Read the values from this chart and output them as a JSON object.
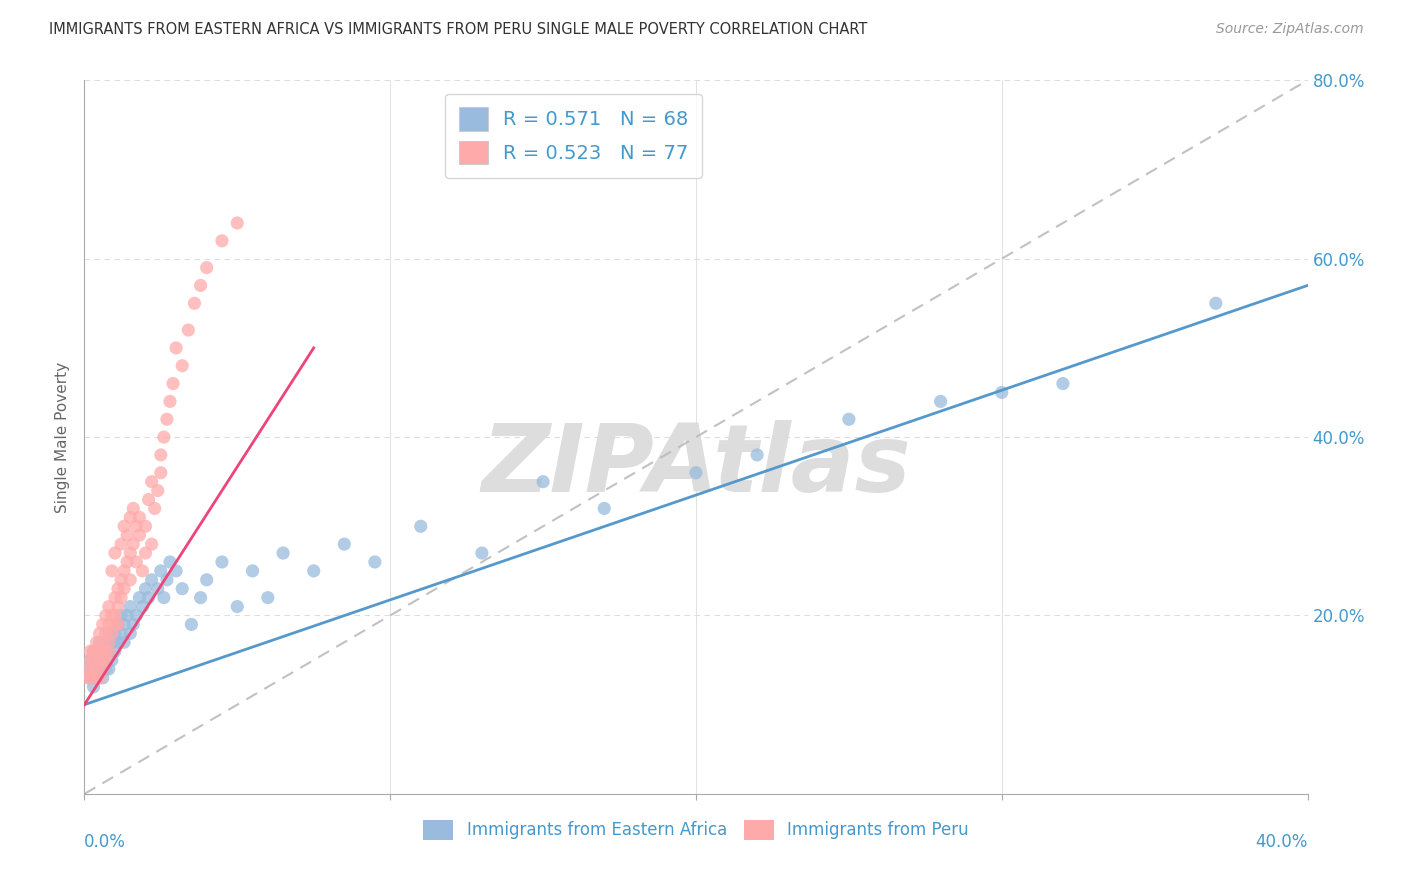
{
  "title": "IMMIGRANTS FROM EASTERN AFRICA VS IMMIGRANTS FROM PERU SINGLE MALE POVERTY CORRELATION CHART",
  "source": "Source: ZipAtlas.com",
  "ylabel": "Single Male Poverty",
  "legend_label1": "Immigrants from Eastern Africa",
  "legend_label2": "Immigrants from Peru",
  "R1": 0.571,
  "N1": 68,
  "R2": 0.523,
  "N2": 77,
  "xlim": [
    0.0,
    0.4
  ],
  "ylim": [
    0.0,
    0.8
  ],
  "color_blue": "#99BBDD",
  "color_pink": "#FFAAAA",
  "color_blue_line": "#5599CC",
  "color_pink_line": "#EE4477",
  "color_diag": "#BBBBBB",
  "color_axis_label": "#4499CC",
  "watermark": "ZIPAtlas",
  "watermark_color": "#DDDDDD",
  "blue_x": [
    0.001,
    0.002,
    0.002,
    0.003,
    0.003,
    0.003,
    0.004,
    0.004,
    0.005,
    0.005,
    0.005,
    0.006,
    0.006,
    0.006,
    0.007,
    0.007,
    0.008,
    0.008,
    0.008,
    0.009,
    0.009,
    0.01,
    0.01,
    0.011,
    0.011,
    0.012,
    0.012,
    0.013,
    0.013,
    0.014,
    0.015,
    0.015,
    0.016,
    0.017,
    0.018,
    0.019,
    0.02,
    0.021,
    0.022,
    0.024,
    0.025,
    0.026,
    0.027,
    0.028,
    0.03,
    0.032,
    0.035,
    0.038,
    0.04,
    0.045,
    0.05,
    0.055,
    0.06,
    0.065,
    0.075,
    0.085,
    0.095,
    0.11,
    0.13,
    0.15,
    0.17,
    0.2,
    0.22,
    0.25,
    0.28,
    0.3,
    0.32,
    0.37
  ],
  "blue_y": [
    0.14,
    0.13,
    0.15,
    0.14,
    0.16,
    0.12,
    0.15,
    0.13,
    0.16,
    0.14,
    0.17,
    0.15,
    0.16,
    0.13,
    0.17,
    0.14,
    0.16,
    0.18,
    0.14,
    0.17,
    0.15,
    0.18,
    0.16,
    0.19,
    0.17,
    0.18,
    0.2,
    0.19,
    0.17,
    0.2,
    0.18,
    0.21,
    0.19,
    0.2,
    0.22,
    0.21,
    0.23,
    0.22,
    0.24,
    0.23,
    0.25,
    0.22,
    0.24,
    0.26,
    0.25,
    0.23,
    0.19,
    0.22,
    0.24,
    0.26,
    0.21,
    0.25,
    0.22,
    0.27,
    0.25,
    0.28,
    0.26,
    0.3,
    0.27,
    0.35,
    0.32,
    0.36,
    0.38,
    0.42,
    0.44,
    0.45,
    0.46,
    0.55
  ],
  "pink_x": [
    0.001,
    0.001,
    0.002,
    0.002,
    0.002,
    0.003,
    0.003,
    0.003,
    0.003,
    0.004,
    0.004,
    0.004,
    0.005,
    0.005,
    0.005,
    0.005,
    0.006,
    0.006,
    0.006,
    0.006,
    0.007,
    0.007,
    0.007,
    0.007,
    0.008,
    0.008,
    0.008,
    0.008,
    0.009,
    0.009,
    0.009,
    0.01,
    0.01,
    0.01,
    0.01,
    0.011,
    0.011,
    0.011,
    0.012,
    0.012,
    0.012,
    0.013,
    0.013,
    0.013,
    0.014,
    0.014,
    0.015,
    0.015,
    0.015,
    0.016,
    0.016,
    0.017,
    0.017,
    0.018,
    0.018,
    0.019,
    0.02,
    0.02,
    0.021,
    0.022,
    0.022,
    0.023,
    0.024,
    0.025,
    0.025,
    0.026,
    0.027,
    0.028,
    0.029,
    0.03,
    0.032,
    0.034,
    0.036,
    0.038,
    0.04,
    0.045,
    0.05
  ],
  "pink_y": [
    0.14,
    0.13,
    0.15,
    0.13,
    0.16,
    0.14,
    0.16,
    0.13,
    0.15,
    0.16,
    0.14,
    0.17,
    0.15,
    0.16,
    0.18,
    0.13,
    0.17,
    0.15,
    0.19,
    0.14,
    0.18,
    0.16,
    0.2,
    0.15,
    0.19,
    0.17,
    0.21,
    0.16,
    0.2,
    0.18,
    0.25,
    0.19,
    0.22,
    0.2,
    0.27,
    0.21,
    0.23,
    0.19,
    0.24,
    0.22,
    0.28,
    0.25,
    0.23,
    0.3,
    0.26,
    0.29,
    0.27,
    0.31,
    0.24,
    0.28,
    0.32,
    0.3,
    0.26,
    0.31,
    0.29,
    0.25,
    0.3,
    0.27,
    0.33,
    0.28,
    0.35,
    0.32,
    0.34,
    0.38,
    0.36,
    0.4,
    0.42,
    0.44,
    0.46,
    0.5,
    0.48,
    0.52,
    0.55,
    0.57,
    0.59,
    0.62,
    0.64
  ],
  "blue_line_x": [
    0.0,
    0.4
  ],
  "blue_line_y": [
    0.1,
    0.57
  ],
  "pink_line_x": [
    0.0,
    0.075
  ],
  "pink_line_y": [
    0.1,
    0.5
  ],
  "diag_line_x": [
    0.0,
    0.4
  ],
  "diag_line_y": [
    0.0,
    0.8
  ]
}
